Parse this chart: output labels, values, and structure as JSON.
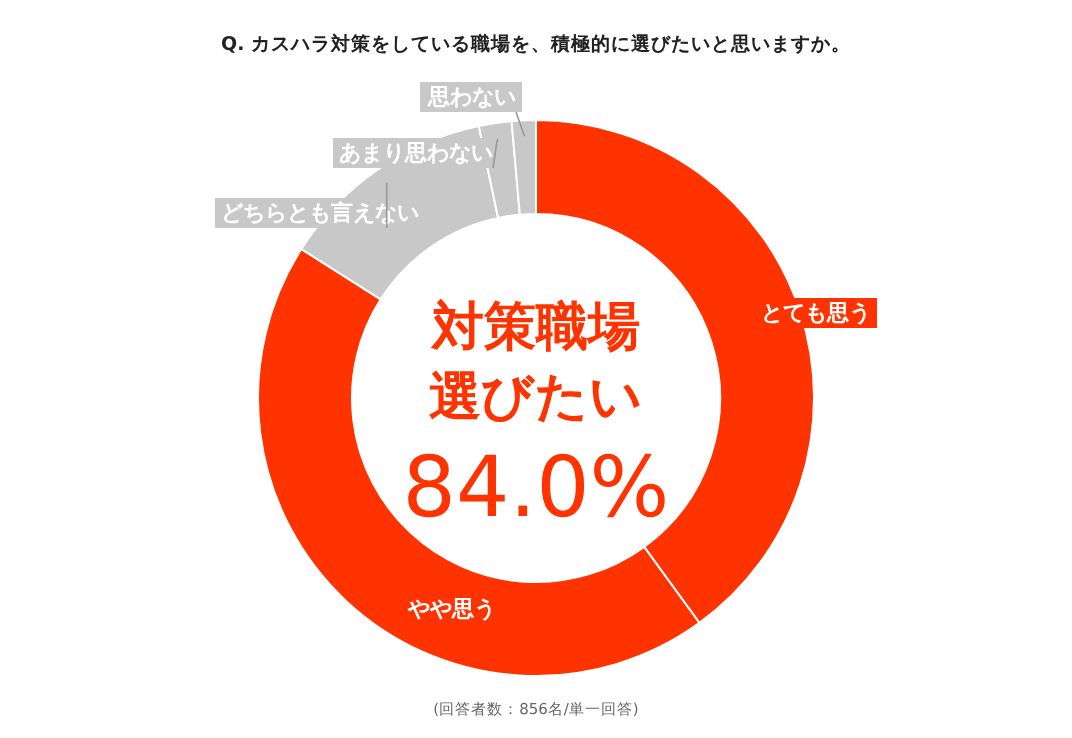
{
  "chart_data": {
    "type": "donut",
    "title": "Q. カスハラ対策をしている職場を、積極的に選びたいと思いますか。",
    "categories": [
      "とても思う",
      "やや思う",
      "どちらとも言えない",
      "あまり思わない",
      "思わない"
    ],
    "values": [
      40.0,
      44.0,
      12.7,
      1.9,
      1.4
    ],
    "colors": [
      "#ff3300",
      "#ff3300",
      "#c8c8c8",
      "#c8c8c8",
      "#c8c8c8"
    ],
    "annotations": [
      "対策職場",
      "選びたい",
      "84.0%",
      "(回答者数：856名/単一回答)"
    ]
  }
}
